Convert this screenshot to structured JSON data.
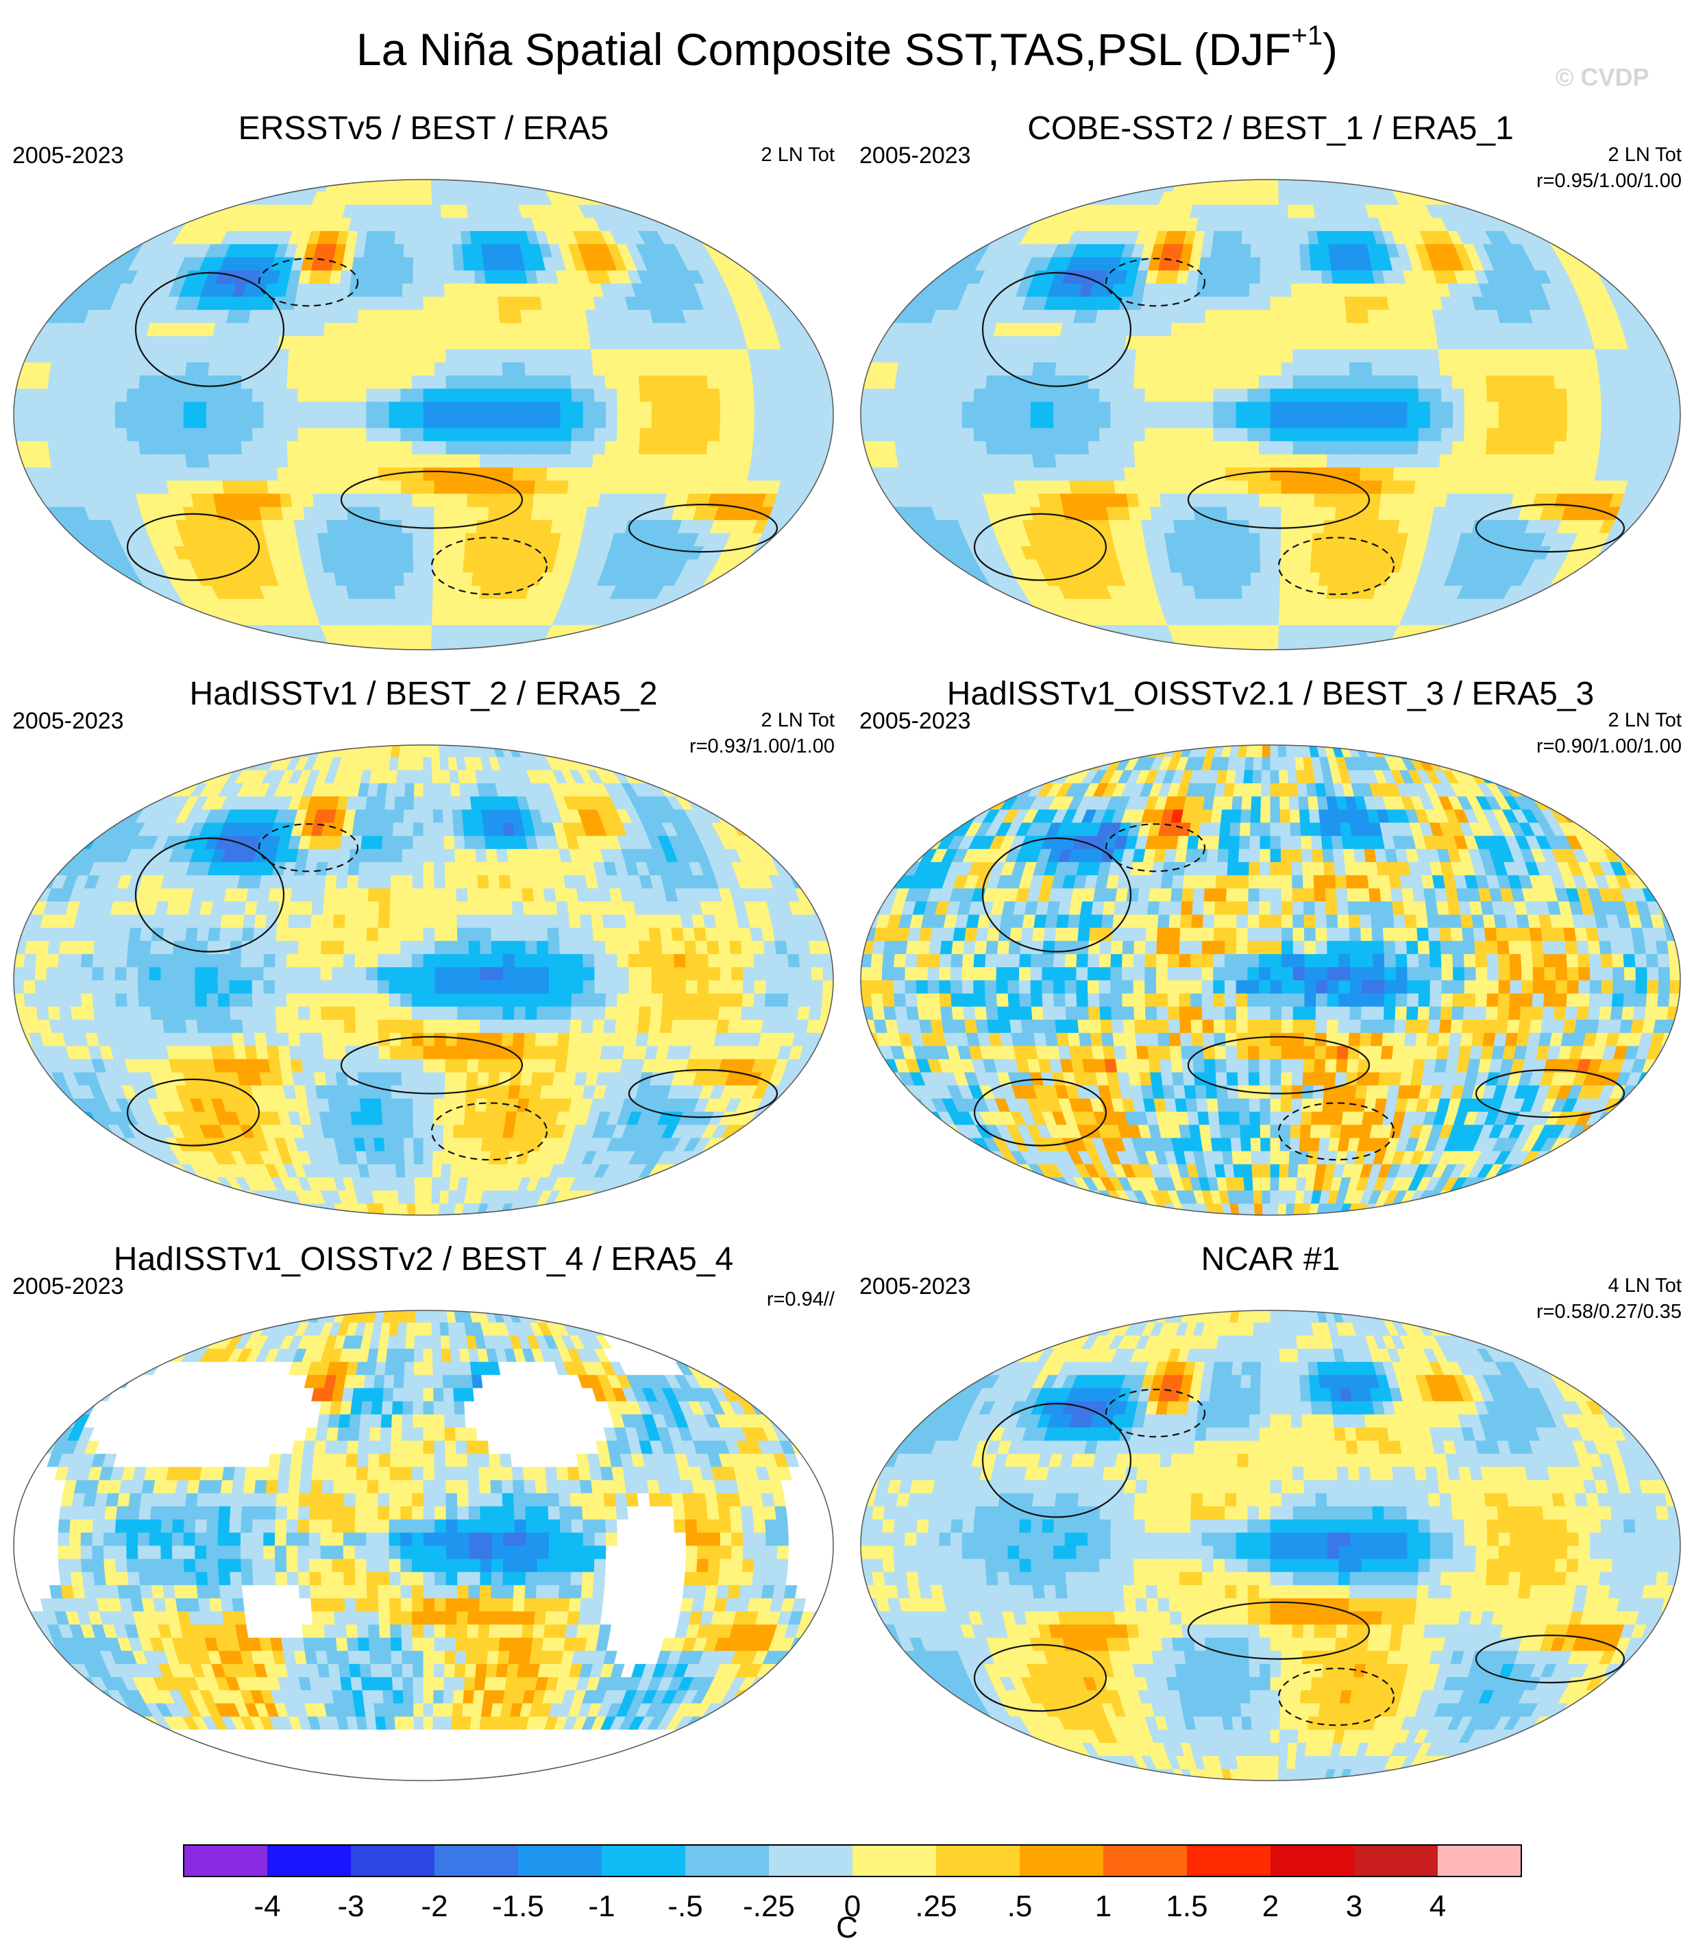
{
  "title_main": "La Niña Spatial Composite SST,TAS,PSL (DJF",
  "title_sup": "+1",
  "title_end": ")",
  "watermark": "© CVDP",
  "chart_data": {
    "type": "map-composite",
    "projection": "Robinson (Pacific-centered)",
    "panels": [
      {
        "title": "ERSSTv5 / BEST / ERA5",
        "period": "2005-2023",
        "count": "2 LN Tot",
        "r": "",
        "land": true,
        "psl_contours": true,
        "noise": 0
      },
      {
        "title": "COBE-SST2 / BEST_1 / ERA5_1",
        "period": "2005-2023",
        "count": "2 LN Tot",
        "r": "r=0.95/1.00/1.00",
        "land": true,
        "psl_contours": true,
        "noise": 0
      },
      {
        "title": "HadISSTv1 / BEST_2 / ERA5_2",
        "period": "2005-2023",
        "count": "2 LN Tot",
        "r": "r=0.93/1.00/1.00",
        "land": true,
        "psl_contours": true,
        "noise": 0.15
      },
      {
        "title": "HadISSTv1_OISSTv2.1 / BEST_3 / ERA5_3",
        "period": "2005-2023",
        "count": "2 LN Tot",
        "r": "r=0.90/1.00/1.00",
        "land": true,
        "psl_contours": true,
        "noise": 0.5
      },
      {
        "title": "HadISSTv1_OISSTv2 / BEST_4 / ERA5_4",
        "period": "2005-2023",
        "count": "",
        "r": "r=0.94//",
        "land": false,
        "psl_contours": false,
        "noise": 0.3
      },
      {
        "title": "NCAR #1",
        "period": "2005-2023",
        "count": "4 LN Tot",
        "r": "r=0.58/0.27/0.35",
        "land": true,
        "psl_contours": true,
        "noise": 0.1
      }
    ],
    "colorbar": {
      "unit": "C",
      "labels": [
        "-4",
        "-3",
        "-2",
        "-1.5",
        "-1",
        "-.5",
        "-.25",
        "0",
        ".25",
        ".5",
        "1",
        "1.5",
        "2",
        "3",
        "4"
      ],
      "levels": [
        -4,
        -3,
        -2,
        -1.5,
        -1,
        -0.5,
        -0.25,
        0,
        0.25,
        0.5,
        1,
        1.5,
        2,
        3,
        4
      ],
      "colors": [
        "#8a2be2",
        "#1a14ff",
        "#2c47e4",
        "#3a78e8",
        "#1e96f0",
        "#10baf5",
        "#70c6ee",
        "#b3def3",
        "#fff47c",
        "#ffd22d",
        "#ffa400",
        "#ff6a10",
        "#ff2a00",
        "#de0a0a",
        "#c81e1e",
        "#ffb8b8"
      ]
    }
  }
}
